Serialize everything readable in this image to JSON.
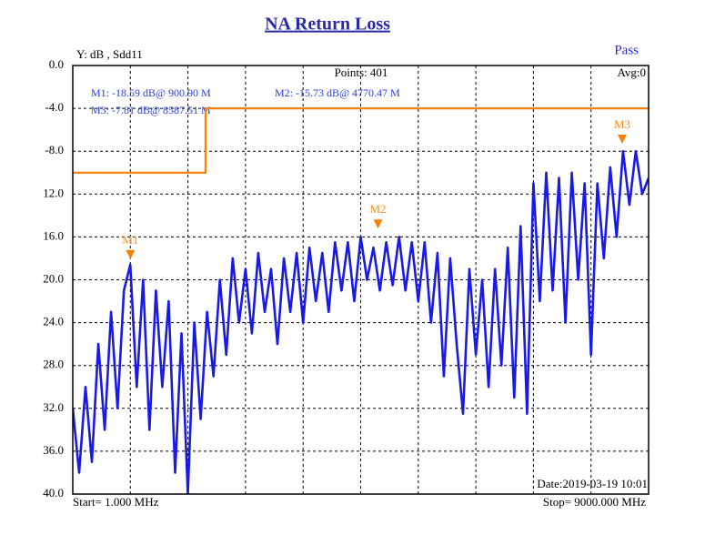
{
  "chart_data": {
    "type": "line",
    "title": "NA Return Loss",
    "y_label": "Y: dB , Sdd11",
    "status": "Pass",
    "points_label": "Points: 401",
    "avg_label": "Avg:0",
    "start_label": "Start= 1.000 MHz",
    "stop_label": "Stop=  9000.000 MHz",
    "date_label": "Date:2019-03-19 10:01",
    "xlim": [
      1,
      9000
    ],
    "xticks": [
      1,
      900.9,
      1800.8,
      2700.7,
      3600.6,
      4500.5,
      5400.4,
      6300.3,
      7200.2,
      8100.1,
      9000
    ],
    "ylim": [
      -40,
      0
    ],
    "yticks": [
      {
        "value": 0,
        "label": "0.0"
      },
      {
        "value": -4,
        "label": "-4.0"
      },
      {
        "value": -8,
        "label": "-8.0"
      },
      {
        "value": -12,
        "label": "12.0"
      },
      {
        "value": -16,
        "label": "16.0"
      },
      {
        "value": -20,
        "label": "20.0"
      },
      {
        "value": -24,
        "label": "24.0"
      },
      {
        "value": -28,
        "label": "28.0"
      },
      {
        "value": -32,
        "label": "32.0"
      },
      {
        "value": -36,
        "label": "36.0"
      },
      {
        "value": -40,
        "label": "40.0"
      }
    ],
    "grid": true,
    "series": [
      {
        "color": "#1a1ae6",
        "x": [
          1,
          100,
          200,
          300,
          400,
          500,
          600,
          700,
          800,
          900,
          1000,
          1100,
          1200,
          1300,
          1400,
          1500,
          1600,
          1700,
          1800,
          1900,
          2000,
          2100,
          2200,
          2300,
          2400,
          2500,
          2600,
          2700,
          2800,
          2900,
          3000,
          3100,
          3200,
          3300,
          3400,
          3500,
          3600,
          3700,
          3800,
          3900,
          4000,
          4100,
          4200,
          4300,
          4400,
          4500,
          4600,
          4700,
          4800,
          4900,
          5000,
          5100,
          5200,
          5300,
          5400,
          5500,
          5600,
          5700,
          5800,
          5900,
          6000,
          6100,
          6200,
          6300,
          6400,
          6500,
          6600,
          6700,
          6800,
          6900,
          7000,
          7100,
          7200,
          7300,
          7400,
          7500,
          7600,
          7700,
          7800,
          7900,
          8000,
          8100,
          8200,
          8300,
          8400,
          8500,
          8600,
          8700,
          8800,
          8900,
          9000
        ],
        "values": [
          -32,
          -38,
          -30,
          -37,
          -26,
          -34,
          -23,
          -32,
          -21,
          -18.59,
          -30,
          -20,
          -34,
          -21,
          -30,
          -22,
          -38,
          -25,
          -40,
          -24,
          -33,
          -23,
          -29,
          -20,
          -27,
          -18,
          -24,
          -19,
          -25,
          -17.5,
          -23,
          -19,
          -26,
          -18,
          -23,
          -17.5,
          -24,
          -17,
          -22,
          -17.5,
          -23,
          -16.5,
          -21,
          -16.5,
          -22,
          -16,
          -20,
          -17,
          -21,
          -16.5,
          -20.5,
          -16,
          -21,
          -16.5,
          -22,
          -16.5,
          -24,
          -17.5,
          -29,
          -18,
          -26,
          -32.5,
          -19,
          -27,
          -20,
          -30,
          -19,
          -28,
          -17,
          -31,
          -15,
          -32.5,
          -11,
          -22,
          -10,
          -21,
          -10.5,
          -24,
          -10,
          -20,
          -11,
          -27,
          -11,
          -18,
          -9.5,
          -16,
          -8,
          -13,
          -8,
          -12,
          -10.5
        ]
      },
      {
        "color": "#ff8000",
        "x": [
          1,
          2075,
          2075,
          9000
        ],
        "values": [
          -10,
          -10,
          -4,
          -4
        ]
      }
    ],
    "markers": [
      {
        "label": "M1",
        "x": 900.9,
        "value": -18.59,
        "readout": "M1: -18.59 dB@ 900.90 M"
      },
      {
        "label": "M2",
        "x": 4770.47,
        "value": -15.73,
        "readout": "M2: -15.73 dB@ 4770.47 M"
      },
      {
        "label": "M3",
        "x": 8587.51,
        "value": -7.81,
        "readout": "M3: -7.81 dB@ 8587.51 M"
      }
    ]
  }
}
